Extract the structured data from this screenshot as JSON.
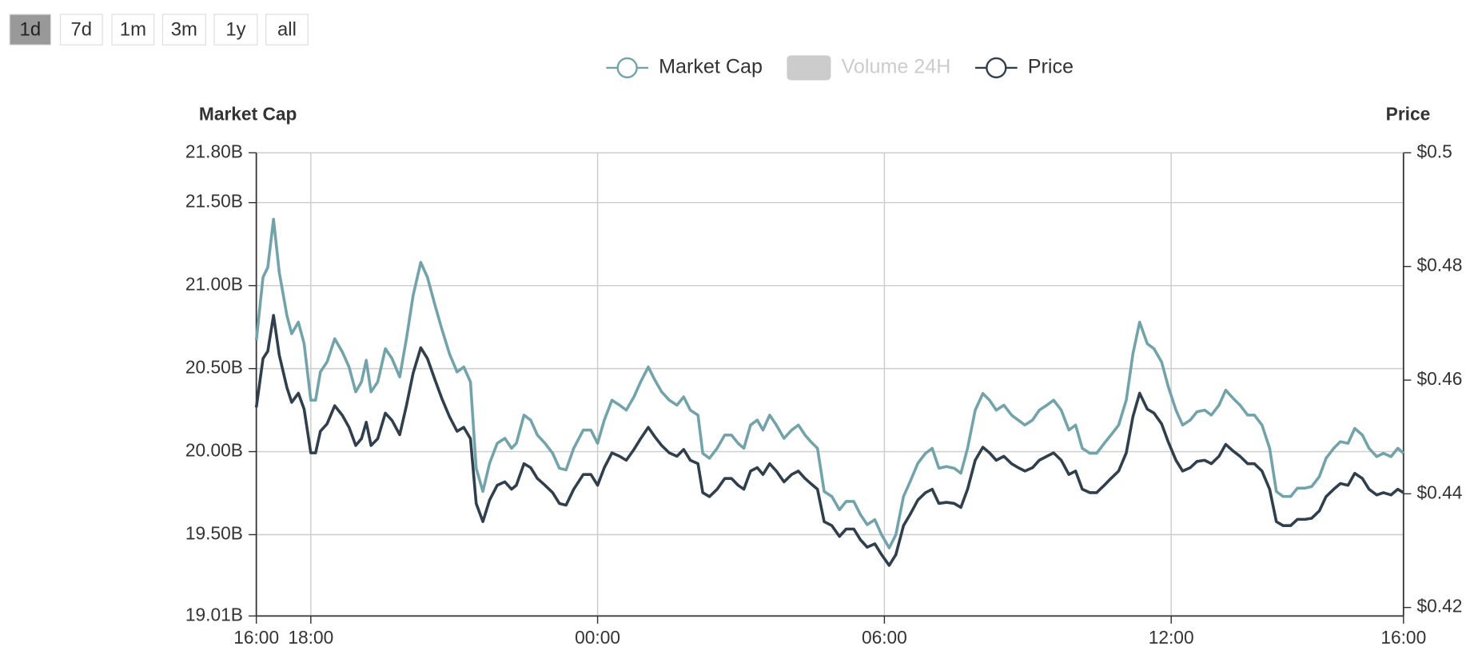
{
  "range_buttons": {
    "labels": [
      "1d",
      "7d",
      "1m",
      "3m",
      "1y",
      "all"
    ],
    "selected": 0
  },
  "chart_data": {
    "type": "line",
    "ylabel": "Market Cap",
    "y2label": "Price",
    "x": [
      16.86,
      17.0,
      17.1,
      17.22,
      17.34,
      17.5,
      17.6,
      17.74,
      17.86,
      18.0,
      18.1,
      18.2,
      18.34,
      18.5,
      18.66,
      18.8,
      18.94,
      19.06,
      19.16,
      19.26,
      19.4,
      19.56,
      19.7,
      19.86,
      20.0,
      20.14,
      20.3,
      20.44,
      20.6,
      20.74,
      20.9,
      21.06,
      21.2,
      21.34,
      21.46,
      21.6,
      21.74,
      21.9,
      22.06,
      22.2,
      22.3,
      22.46,
      22.6,
      22.74,
      22.9,
      23.06,
      23.2,
      23.34,
      23.5,
      23.7,
      23.86,
      24.0,
      24.14,
      24.3,
      24.46,
      24.6,
      24.76,
      24.9,
      25.06,
      25.2,
      25.34,
      25.5,
      25.66,
      25.8,
      25.94,
      26.1,
      26.2,
      26.34,
      26.5,
      26.66,
      26.8,
      26.94,
      27.06,
      27.2,
      27.34,
      27.46,
      27.6,
      27.74,
      27.9,
      28.06,
      28.2,
      28.34,
      28.46,
      28.6,
      28.74,
      28.9,
      29.06,
      29.2,
      29.36,
      29.5,
      29.64,
      29.8,
      29.94,
      30.1,
      30.24,
      30.4,
      30.54,
      30.7,
      30.86,
      31.0,
      31.14,
      31.3,
      31.46,
      31.6,
      31.74,
      31.9,
      32.06,
      32.2,
      32.34,
      32.5,
      32.66,
      32.8,
      32.94,
      33.1,
      33.24,
      33.4,
      33.54,
      33.7,
      33.86,
      34.0,
      34.14,
      34.3,
      34.44,
      34.6,
      34.74,
      34.9,
      35.06,
      35.2,
      35.34,
      35.5,
      35.64,
      35.8,
      35.94,
      36.1,
      36.24,
      36.4,
      36.54,
      36.7,
      36.84,
      37.0,
      37.14,
      37.3,
      37.44,
      37.6,
      37.74,
      37.9,
      38.06,
      38.2,
      38.34,
      38.5,
      38.64,
      38.8,
      38.94,
      39.1,
      39.24,
      39.4,
      39.54,
      39.7,
      39.84,
      40.0,
      40.14,
      40.3,
      40.44,
      40.6,
      40.74,
      40.86
    ],
    "series": [
      {
        "name": "Market Cap",
        "color": "#72a3aa",
        "axis": "y",
        "values": [
          20.67,
          21.05,
          21.11,
          21.4,
          21.08,
          20.82,
          20.71,
          20.78,
          20.65,
          20.31,
          20.31,
          20.48,
          20.54,
          20.68,
          20.6,
          20.51,
          20.36,
          20.42,
          20.55,
          20.36,
          20.42,
          20.62,
          20.56,
          20.45,
          20.68,
          20.94,
          21.14,
          21.05,
          20.88,
          20.74,
          20.59,
          20.48,
          20.51,
          20.42,
          19.9,
          19.76,
          19.93,
          20.05,
          20.08,
          20.02,
          20.05,
          20.22,
          20.19,
          20.1,
          20.05,
          19.99,
          19.9,
          19.89,
          20.02,
          20.13,
          20.13,
          20.05,
          20.19,
          20.31,
          20.28,
          20.25,
          20.33,
          20.42,
          20.51,
          20.43,
          20.36,
          20.31,
          20.28,
          20.33,
          20.25,
          20.22,
          19.99,
          19.96,
          20.02,
          20.1,
          20.1,
          20.05,
          20.02,
          20.16,
          20.19,
          20.13,
          20.22,
          20.16,
          20.08,
          20.13,
          20.16,
          20.1,
          20.06,
          20.02,
          19.76,
          19.73,
          19.65,
          19.7,
          19.7,
          19.62,
          19.56,
          19.59,
          19.5,
          19.42,
          19.5,
          19.73,
          19.82,
          19.93,
          19.99,
          20.02,
          19.9,
          19.91,
          19.9,
          19.87,
          20.02,
          20.25,
          20.35,
          20.31,
          20.25,
          20.28,
          20.22,
          20.19,
          20.16,
          20.19,
          20.25,
          20.28,
          20.31,
          20.25,
          20.13,
          20.16,
          20.02,
          19.99,
          19.99,
          20.05,
          20.1,
          20.16,
          20.31,
          20.59,
          20.78,
          20.65,
          20.62,
          20.54,
          20.39,
          20.25,
          20.16,
          20.19,
          20.24,
          20.25,
          20.22,
          20.28,
          20.37,
          20.32,
          20.28,
          20.22,
          20.22,
          20.16,
          20.02,
          19.76,
          19.73,
          19.73,
          19.78,
          19.78,
          19.79,
          19.85,
          19.96,
          20.02,
          20.06,
          20.05,
          20.14,
          20.1,
          20.02,
          19.97,
          19.99,
          19.97,
          20.02,
          19.99
        ]
      },
      {
        "name": "Volume 24H",
        "color": "#cccccc",
        "visible": false
      },
      {
        "name": "Price",
        "color": "#2f3f4d",
        "axis": "y2",
        "values": [
          0.4552,
          0.4638,
          0.4651,
          0.4714,
          0.4644,
          0.4587,
          0.4561,
          0.4577,
          0.4549,
          0.4472,
          0.4472,
          0.451,
          0.4523,
          0.4555,
          0.4538,
          0.4517,
          0.4485,
          0.4497,
          0.4526,
          0.4485,
          0.4497,
          0.4542,
          0.4529,
          0.4504,
          0.4555,
          0.4612,
          0.4657,
          0.4638,
          0.46,
          0.4568,
          0.4536,
          0.451,
          0.4517,
          0.4497,
          0.4383,
          0.4351,
          0.4389,
          0.4415,
          0.4421,
          0.4408,
          0.4415,
          0.4453,
          0.4446,
          0.4427,
          0.4415,
          0.4402,
          0.4383,
          0.438,
          0.4408,
          0.4434,
          0.4434,
          0.4415,
          0.4446,
          0.4472,
          0.4466,
          0.4459,
          0.4478,
          0.4497,
          0.4517,
          0.45,
          0.4485,
          0.4472,
          0.4466,
          0.4478,
          0.4459,
          0.4453,
          0.4402,
          0.4395,
          0.4408,
          0.4427,
          0.4427,
          0.4415,
          0.4408,
          0.444,
          0.4446,
          0.4434,
          0.4453,
          0.444,
          0.4421,
          0.4434,
          0.444,
          0.4427,
          0.4418,
          0.4408,
          0.4351,
          0.4344,
          0.4325,
          0.4338,
          0.4338,
          0.4319,
          0.4306,
          0.4312,
          0.4293,
          0.4274,
          0.4293,
          0.4344,
          0.4364,
          0.4389,
          0.4402,
          0.4408,
          0.4383,
          0.4385,
          0.4383,
          0.4376,
          0.4408,
          0.4459,
          0.4482,
          0.4472,
          0.4459,
          0.4466,
          0.4453,
          0.4446,
          0.444,
          0.4446,
          0.4459,
          0.4466,
          0.4472,
          0.4459,
          0.4434,
          0.444,
          0.4408,
          0.4402,
          0.4402,
          0.4415,
          0.4427,
          0.444,
          0.4472,
          0.4536,
          0.4577,
          0.4549,
          0.4542,
          0.4523,
          0.4491,
          0.4459,
          0.444,
          0.4446,
          0.4457,
          0.4459,
          0.4453,
          0.4466,
          0.4487,
          0.4475,
          0.4466,
          0.4453,
          0.4453,
          0.444,
          0.4408,
          0.4351,
          0.4344,
          0.4344,
          0.4355,
          0.4355,
          0.4357,
          0.437,
          0.4395,
          0.4408,
          0.4418,
          0.4415,
          0.4436,
          0.4427,
          0.4408,
          0.4398,
          0.4402,
          0.4398,
          0.4408,
          0.4402
        ]
      }
    ],
    "xlim": [
      16.86,
      40.86
    ],
    "xticks": [
      {
        "value": 16.86,
        "label": "16:00"
      },
      {
        "value": 18,
        "label": "18:00"
      },
      {
        "value": 24,
        "label": "00:00"
      },
      {
        "value": 30,
        "label": "06:00"
      },
      {
        "value": 36,
        "label": "12:00"
      },
      {
        "value": 40.86,
        "label": "16:00"
      }
    ],
    "ylim": [
      19.01,
      21.8
    ],
    "yticks": [
      {
        "value": 21.8,
        "label": "21.80B"
      },
      {
        "value": 21.5,
        "label": "21.50B"
      },
      {
        "value": 21,
        "label": "21.00B"
      },
      {
        "value": 20.5,
        "label": "20.50B"
      },
      {
        "value": 20,
        "label": "20.00B"
      },
      {
        "value": 19.5,
        "label": "19.50B"
      },
      {
        "value": 19.01,
        "label": "19.01B"
      }
    ],
    "y2lim": [
      0.4185,
      0.5
    ],
    "y2ticks": [
      {
        "value": 0.5,
        "label": "$0.5"
      },
      {
        "value": 0.48,
        "label": "$0.48"
      },
      {
        "value": 0.46,
        "label": "$0.46"
      },
      {
        "value": 0.44,
        "label": "$0.44"
      },
      {
        "value": 0.42,
        "label": "$0.42"
      }
    ],
    "grid": true,
    "legend": "top"
  }
}
